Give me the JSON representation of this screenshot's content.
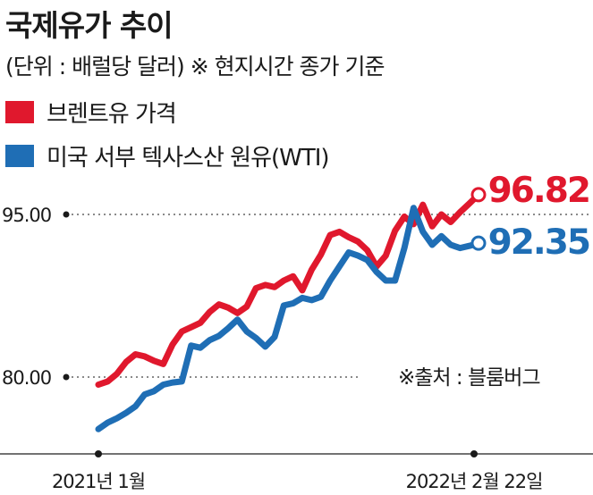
{
  "header": {
    "title": "국제유가 추이",
    "unit_note": "(단위 : 배럴당 달러) ※ 현지시간 종가 기준"
  },
  "legend": [
    {
      "label": "브렌트유 가격",
      "color": "#e0182d"
    },
    {
      "label": "미국 서부 텍사스산 원유(WTI)",
      "color": "#1f6eb5"
    }
  ],
  "source": "※출처 : 블룸버그",
  "chart_data": {
    "type": "line",
    "x_start_label": "2021년 1월",
    "x_end_label": "2022년 2월 22일",
    "y_ticks": [
      {
        "value": 95,
        "label": "95.00"
      },
      {
        "value": 80,
        "label": "80.00"
      }
    ],
    "series": [
      {
        "name": "브렌트유 가격",
        "color": "#e0182d",
        "end_label": "96.82",
        "values": [
          79.3,
          79.6,
          80.3,
          81.4,
          82.1,
          81.9,
          81.5,
          81.2,
          83.0,
          84.2,
          84.6,
          85.0,
          86.0,
          86.7,
          86.4,
          85.9,
          86.5,
          88.2,
          88.5,
          88.3,
          88.9,
          89.3,
          88.0,
          89.9,
          91.3,
          93.1,
          93.4,
          92.9,
          92.5,
          91.7,
          90.2,
          91.2,
          93.5,
          94.8,
          94.1,
          95.9,
          93.9,
          95.0,
          94.3,
          95.2,
          96.0,
          96.82
        ]
      },
      {
        "name": "미국 서부 텍사스산 원유(WTI)",
        "color": "#1f6eb5",
        "end_label": "92.35",
        "values": [
          75.2,
          75.8,
          76.2,
          76.7,
          77.3,
          78.4,
          78.7,
          79.3,
          79.5,
          79.6,
          82.9,
          82.7,
          83.4,
          83.8,
          84.5,
          85.3,
          84.2,
          83.6,
          82.8,
          83.7,
          86.6,
          86.8,
          87.3,
          87.1,
          87.4,
          88.9,
          90.2,
          91.5,
          91.2,
          90.8,
          89.7,
          88.9,
          88.9,
          91.9,
          95.6,
          93.4,
          92.2,
          93.0,
          92.2,
          91.9,
          92.1,
          92.35
        ]
      }
    ]
  }
}
